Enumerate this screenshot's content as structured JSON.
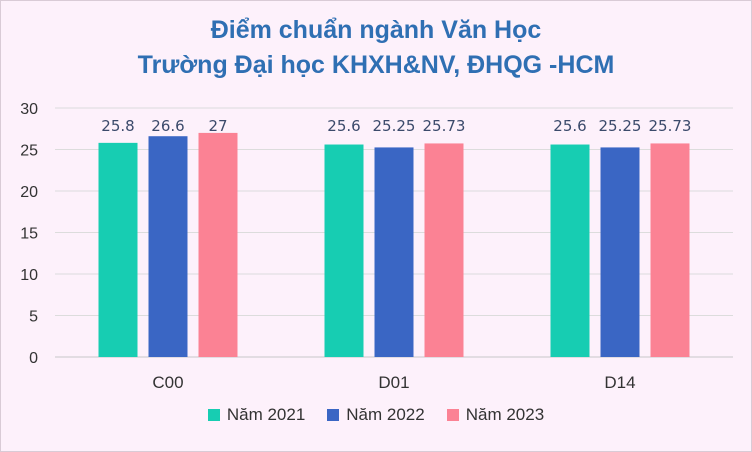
{
  "chart_data": {
    "type": "bar",
    "title_line1": "Điểm chuẩn ngành Văn Học",
    "title_line2": "Trường Đại học KHXH&NV, ĐHQG -HCM",
    "categories": [
      "C00",
      "D01",
      "D14"
    ],
    "series": [
      {
        "name": "Năm 2021",
        "color": "#17cdb2",
        "values": [
          25.8,
          25.6,
          25.6
        ],
        "labels": [
          "25.8",
          "25.6",
          "25.6"
        ]
      },
      {
        "name": "Năm 2022",
        "color": "#3a66c4",
        "values": [
          26.6,
          25.25,
          25.25
        ],
        "labels": [
          "26.6",
          "25.25",
          "25.25"
        ]
      },
      {
        "name": "Năm 2023",
        "color": "#fb8294",
        "values": [
          27,
          25.73,
          25.73
        ],
        "labels": [
          "27",
          "25.73",
          "25.73"
        ]
      }
    ],
    "yticks": [
      "0",
      "5",
      "10",
      "15",
      "20",
      "25",
      "30"
    ],
    "ylim": [
      0,
      30
    ],
    "grid": true,
    "legend_position": "bottom"
  }
}
